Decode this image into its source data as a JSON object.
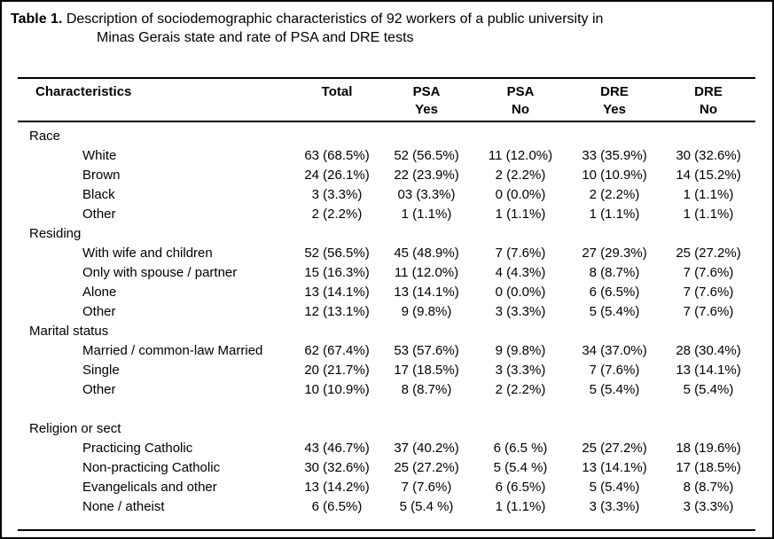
{
  "title": {
    "label": "Table 1.",
    "line1": "Description of sociodemographic characteristics of 92 workers of a public university in",
    "line2": "Minas Gerais state and rate of PSA and DRE tests"
  },
  "table": {
    "columns": [
      {
        "line1": "Characteristics",
        "line2": ""
      },
      {
        "line1": "Total",
        "line2": ""
      },
      {
        "line1": "PSA",
        "line2": "Yes"
      },
      {
        "line1": "PSA",
        "line2": "No"
      },
      {
        "line1": "DRE",
        "line2": "Yes"
      },
      {
        "line1": "DRE",
        "line2": "No"
      }
    ],
    "groups": [
      {
        "name": "Race",
        "spacer_before": false,
        "rows": [
          {
            "label": "White",
            "values": [
              "63 (68.5%)",
              "52 (56.5%)",
              "11 (12.0%)",
              "33 (35.9%)",
              "30 (32.6%)"
            ]
          },
          {
            "label": "Brown",
            "values": [
              "24 (26.1%)",
              "22 (23.9%)",
              "2 (2.2%)",
              "10 (10.9%)",
              "14 (15.2%)"
            ]
          },
          {
            "label": "Black",
            "values": [
              "3 (3.3%)",
              "03 (3.3%)",
              "0 (0.0%)",
              "2 (2.2%)",
              "1 (1.1%)"
            ]
          },
          {
            "label": "Other",
            "values": [
              "2 (2.2%)",
              "1 (1.1%)",
              "1 (1.1%)",
              "1 (1.1%)",
              "1 (1.1%)"
            ]
          }
        ]
      },
      {
        "name": "Residing",
        "spacer_before": false,
        "rows": [
          {
            "label": "With wife and children",
            "values": [
              "52 (56.5%)",
              "45 (48.9%)",
              "7 (7.6%)",
              "27 (29.3%)",
              "25 (27.2%)"
            ]
          },
          {
            "label": "Only with spouse / partner",
            "values": [
              "15 (16.3%)",
              "11 (12.0%)",
              "4 (4.3%)",
              "8 (8.7%)",
              "7 (7.6%)"
            ]
          },
          {
            "label": "Alone",
            "values": [
              "13 (14.1%)",
              "13 (14.1%)",
              "0 (0.0%)",
              "6 (6.5%)",
              "7 (7.6%)"
            ]
          },
          {
            "label": "Other",
            "values": [
              "12 (13.1%)",
              "9 (9.8%)",
              "3 (3.3%)",
              "5 (5.4%)",
              "7 (7.6%)"
            ]
          }
        ]
      },
      {
        "name": "Marital status",
        "spacer_before": false,
        "rows": [
          {
            "label": "Married / common-law Married",
            "values": [
              "62 (67.4%)",
              "53 (57.6%)",
              "9 (9.8%)",
              "34 (37.0%)",
              "28 (30.4%)"
            ]
          },
          {
            "label": "Single",
            "values": [
              "20 (21.7%)",
              "17 (18.5%)",
              "3 (3.3%)",
              "7 (7.6%)",
              "13 (14.1%)"
            ]
          },
          {
            "label": "Other",
            "values": [
              "10 (10.9%)",
              "8 (8.7%)",
              "2 (2.2%)",
              "5 (5.4%)",
              "5 (5.4%)"
            ]
          }
        ]
      },
      {
        "name": "Religion or sect",
        "spacer_before": true,
        "rows": [
          {
            "label": "Practicing Catholic",
            "values": [
              "43 (46.7%)",
              "37 (40.2%)",
              "6 (6.5 %)",
              "25 (27.2%)",
              "18 (19.6%)"
            ]
          },
          {
            "label": "Non-practicing Catholic",
            "values": [
              "30 (32.6%)",
              "25 (27.2%)",
              "5 (5.4 %)",
              "13 (14.1%)",
              "17 (18.5%)"
            ]
          },
          {
            "label": "Evangelicals and other",
            "values": [
              "13 (14.2%)",
              "7 (7.6%)",
              "6 (6.5%)",
              "5 (5.4%)",
              "8 (8.7%)"
            ]
          },
          {
            "label": "None / atheist",
            "values": [
              "6 (6.5%)",
              "5 (5.4 %)",
              "1 (1.1%)",
              "3 (3.3%)",
              "3 (3.3%)"
            ]
          }
        ]
      }
    ]
  }
}
